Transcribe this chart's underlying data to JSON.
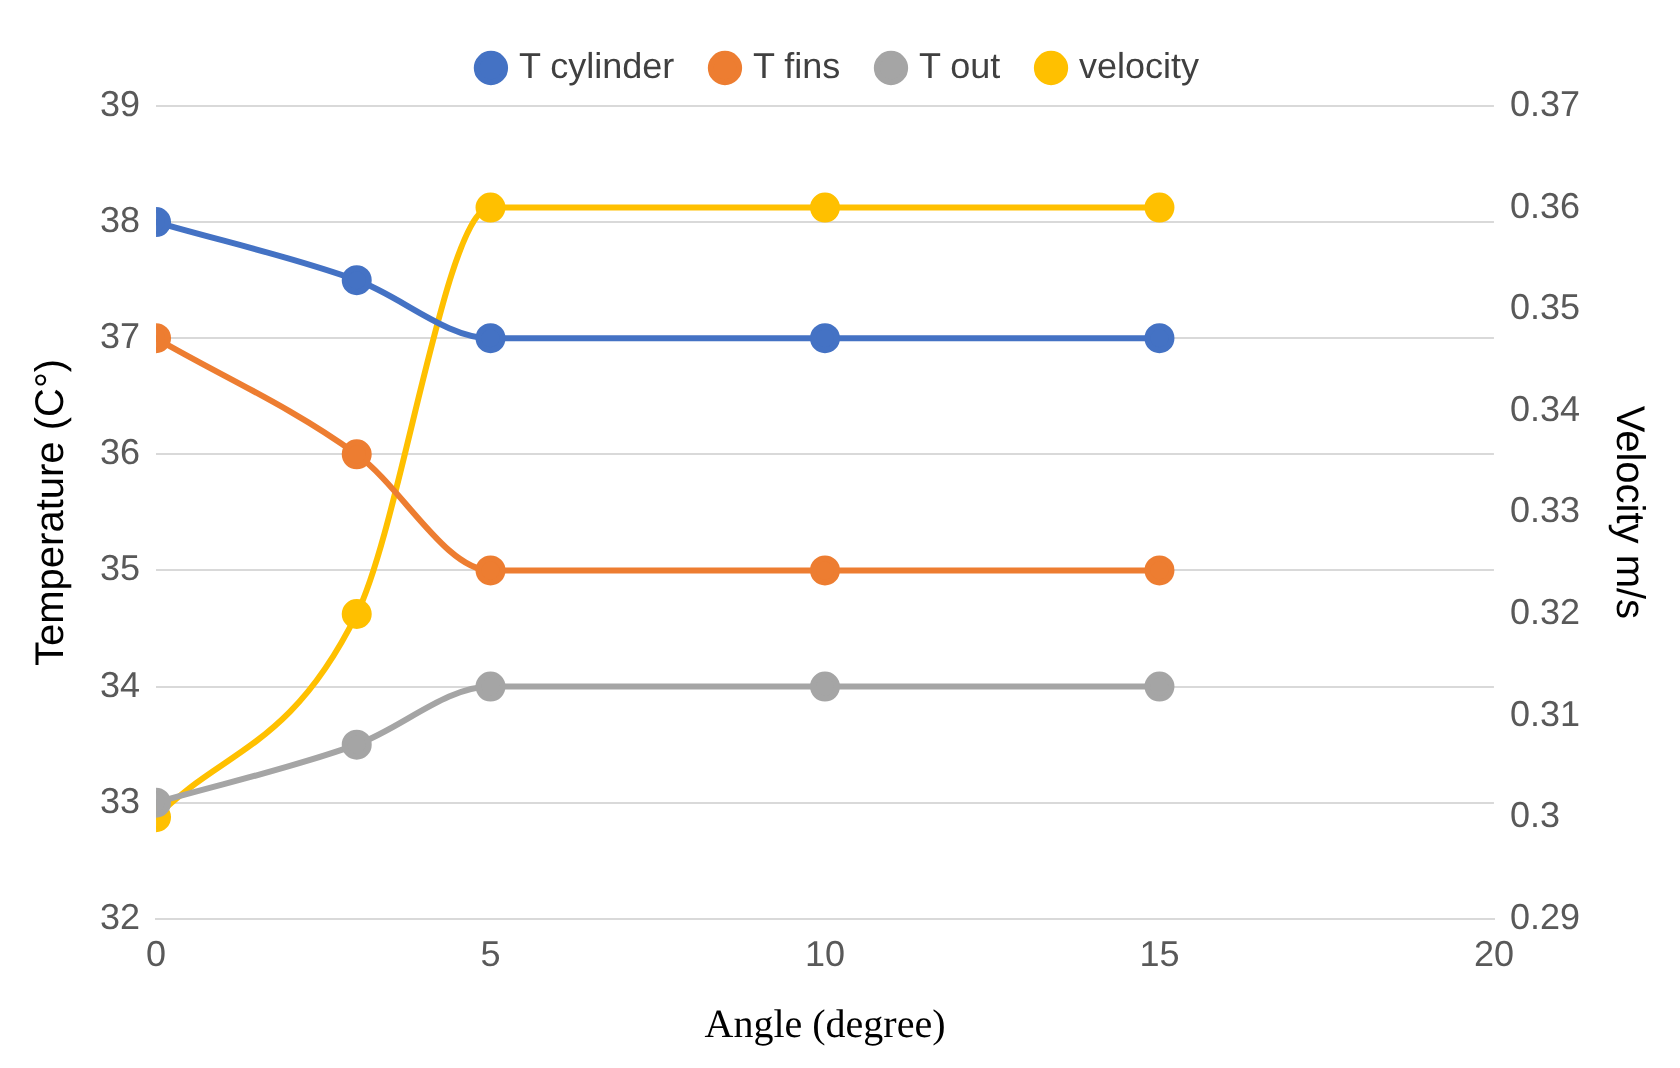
{
  "chart_data": {
    "type": "line",
    "x": [
      0,
      3,
      5,
      10,
      15
    ],
    "series": [
      {
        "name": "T cylinder",
        "color": "#4472c4",
        "values": [
          38,
          37.5,
          37,
          37,
          37
        ]
      },
      {
        "name": "T fins",
        "color": "#ed7d31",
        "values": [
          37,
          36,
          35,
          35,
          35
        ]
      },
      {
        "name": "T out",
        "color": "#a5a5a5",
        "values": [
          33,
          33.5,
          34,
          34,
          34
        ]
      },
      {
        "name": "velocity",
        "color": "#ffc000",
        "values": [
          0.3,
          0.32,
          0.36,
          0.36,
          0.36
        ],
        "axis": "y2"
      }
    ],
    "xlabel": "Angle (degree)",
    "ylabel": "Temperature (C°)",
    "y2label": "Velocity m/s",
    "xlim": [
      0,
      20
    ],
    "xticks": [
      0,
      5,
      10,
      15,
      20
    ],
    "ylim": [
      32,
      39
    ],
    "yticks": [
      32,
      33,
      34,
      35,
      36,
      37,
      38,
      39
    ],
    "y2lim": [
      0.29,
      0.37
    ],
    "y2ticks": [
      0.29,
      0.3,
      0.31,
      0.32,
      0.33,
      0.34,
      0.35,
      0.36,
      0.37
    ],
    "grid": "y",
    "legend": "top",
    "marker": "circle",
    "line_style": "solid"
  }
}
